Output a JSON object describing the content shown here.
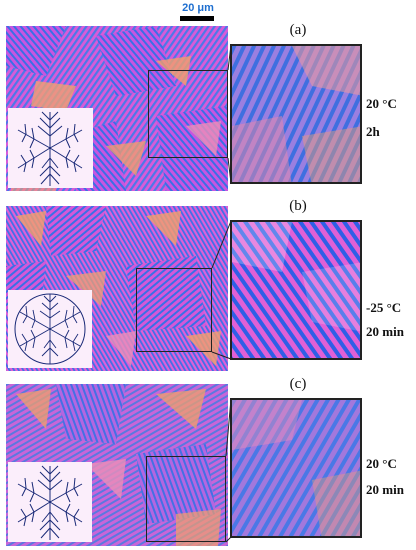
{
  "scale_bar": {
    "label": "20 μm"
  },
  "colors": {
    "magenta": "#e25ad9",
    "blue": "#3a6fe6",
    "orange": "#f2a06a",
    "inset_bg": "#fbeefb",
    "dendrite": "#1a2a78"
  },
  "panels": [
    {
      "label": "(a)",
      "temperature": "20 °C",
      "duration": "2h"
    },
    {
      "label": "(b)",
      "temperature": "-25 °C",
      "duration": "20 min"
    },
    {
      "label": "(c)",
      "temperature": "20 °C",
      "duration": "20 min"
    }
  ]
}
